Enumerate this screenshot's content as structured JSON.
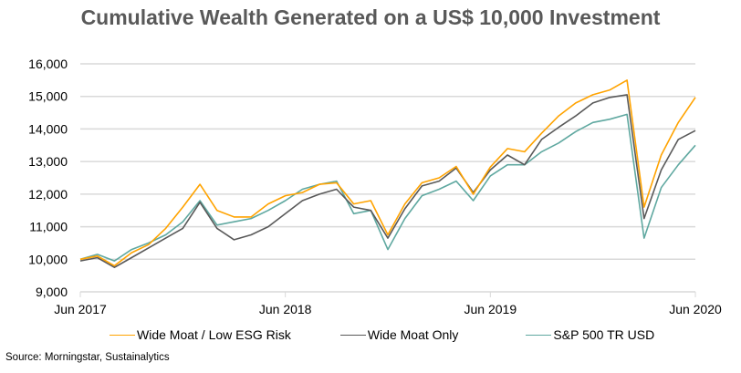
{
  "chart_data": {
    "type": "line",
    "title": "Cumulative Wealth Generated on a US$ 10,000 Investment",
    "xlabel": "",
    "ylabel": "",
    "ylim": [
      9000,
      16000
    ],
    "y_ticks": [
      "9,000",
      "10,000",
      "11,000",
      "12,000",
      "13,000",
      "14,000",
      "15,000",
      "16,000"
    ],
    "y_tick_values": [
      9000,
      10000,
      11000,
      12000,
      13000,
      14000,
      15000,
      16000
    ],
    "x_ticks": [
      "Jun 2017",
      "Jun 2018",
      "Jun 2019",
      "Jun 2020"
    ],
    "x_tick_months": [
      0,
      12,
      24,
      36
    ],
    "x": [
      "Jun 2017",
      "Jul 2017",
      "Aug 2017",
      "Sep 2017",
      "Oct 2017",
      "Nov 2017",
      "Dec 2017",
      "Jan 2018",
      "Feb 2018",
      "Mar 2018",
      "Apr 2018",
      "May 2018",
      "Jun 2018",
      "Jul 2018",
      "Aug 2018",
      "Sep 2018",
      "Oct 2018",
      "Nov 2018",
      "Dec 2018",
      "Jan 2019",
      "Feb 2019",
      "Mar 2019",
      "Apr 2019",
      "May 2019",
      "Jun 2019",
      "Jul 2019",
      "Aug 2019",
      "Sep 2019",
      "Oct 2019",
      "Nov 2019",
      "Dec 2019",
      "Jan 2020",
      "Feb 2020",
      "Mar 2020",
      "Apr 2020",
      "May 2020",
      "Jun 2020"
    ],
    "grid": true,
    "legend_position": "bottom",
    "series": [
      {
        "name": "Wide Moat / Low ESG Risk",
        "color": "#FFA300",
        "values": [
          10000,
          10100,
          9800,
          10200,
          10450,
          10950,
          11600,
          12300,
          11500,
          11300,
          11300,
          11700,
          11950,
          12050,
          12300,
          12350,
          11700,
          11800,
          10750,
          11700,
          12350,
          12500,
          12850,
          12000,
          12830,
          13400,
          13300,
          13870,
          14400,
          14800,
          15050,
          15200,
          15500,
          11600,
          13200,
          14200,
          14970
        ]
      },
      {
        "name": "Wide Moat Only",
        "color": "#595959",
        "values": [
          9950,
          10050,
          9750,
          10050,
          10350,
          10650,
          10950,
          11750,
          10950,
          10600,
          10750,
          11000,
          11400,
          11800,
          12000,
          12150,
          11600,
          11500,
          10650,
          11550,
          12250,
          12400,
          12800,
          12050,
          12740,
          13200,
          12900,
          13680,
          14050,
          14400,
          14800,
          14970,
          15050,
          11250,
          12740,
          13680,
          13950
        ]
      },
      {
        "name": "S&P 500 TR USD",
        "color": "#5FA8A0",
        "values": [
          10000,
          10150,
          9950,
          10300,
          10500,
          10750,
          11150,
          11800,
          11050,
          11150,
          11250,
          11500,
          11800,
          12150,
          12300,
          12400,
          11400,
          11500,
          10300,
          11250,
          11950,
          12150,
          12400,
          11800,
          12560,
          12900,
          12900,
          13300,
          13570,
          13920,
          14200,
          14300,
          14450,
          10650,
          12200,
          12900,
          13500
        ]
      }
    ]
  },
  "source": "Source: Morningstar, Sustainalytics"
}
